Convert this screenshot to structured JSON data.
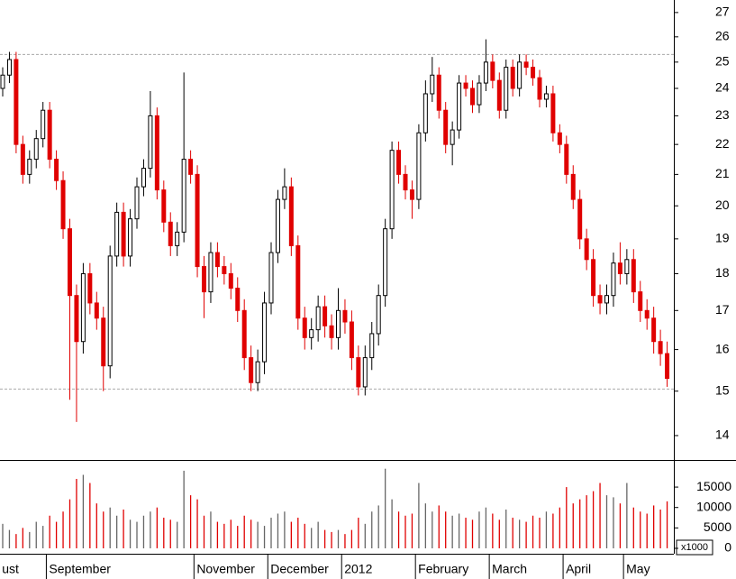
{
  "chart_data": {
    "type": "candlestick",
    "log_scale": true,
    "up_color": "#000000",
    "down_color": "#e00000",
    "ylim": [
      13.48,
      27.53
    ],
    "yticks": [
      14,
      15,
      16,
      17,
      18,
      19,
      20,
      21,
      22,
      23,
      24,
      25,
      26,
      27
    ],
    "reference_lines": [
      25.3,
      15.05
    ],
    "categories": [
      "ust",
      null,
      null,
      null,
      null,
      null,
      null,
      "September",
      null,
      null,
      null,
      null,
      null,
      null,
      null,
      null,
      null,
      null,
      null,
      null,
      null,
      null,
      null,
      null,
      null,
      null,
      null,
      null,
      null,
      "November",
      null,
      null,
      null,
      null,
      null,
      null,
      null,
      null,
      null,
      null,
      "December",
      null,
      null,
      null,
      null,
      null,
      null,
      null,
      null,
      null,
      null,
      "2012",
      null,
      null,
      null,
      null,
      null,
      null,
      null,
      null,
      null,
      null,
      "February",
      null,
      null,
      null,
      null,
      null,
      null,
      null,
      null,
      null,
      null,
      "March",
      null,
      null,
      null,
      null,
      null,
      null,
      null,
      null,
      null,
      null,
      "April",
      null,
      null,
      null,
      null,
      null,
      null,
      null,
      null,
      "May",
      null,
      null,
      null,
      null,
      null,
      null
    ],
    "open": [
      24.0,
      24.5,
      25.1,
      22.0,
      21.0,
      21.5,
      22.2,
      23.2,
      21.5,
      20.8,
      19.3,
      17.4,
      16.2,
      18.0,
      17.2,
      16.8,
      15.6,
      18.5,
      19.8,
      18.5,
      19.6,
      20.6,
      21.2,
      23.0,
      20.5,
      19.5,
      18.8,
      19.2,
      21.5,
      21.0,
      18.2,
      17.5,
      18.6,
      18.2,
      18.0,
      17.6,
      17.0,
      15.8,
      15.2,
      15.7,
      17.2,
      18.6,
      20.2,
      20.6,
      18.8,
      16.8,
      16.3,
      16.5,
      17.1,
      16.6,
      16.3,
      17.0,
      16.7,
      15.8,
      15.1,
      15.8,
      16.4,
      17.4,
      19.3,
      21.8,
      21.0,
      20.5,
      20.2,
      22.4,
      23.8,
      24.5,
      23.2,
      22.0,
      22.5,
      24.2,
      24.0,
      23.4,
      24.2,
      25.0,
      24.3,
      23.2,
      24.8,
      24.0,
      25.0,
      24.8,
      24.4,
      23.6,
      23.8,
      22.4,
      22.0,
      21.0,
      20.2,
      19.0,
      18.4,
      17.4,
      17.2,
      17.4,
      18.3,
      18.0,
      18.4,
      17.5,
      17.0,
      16.8,
      16.2,
      15.9
    ],
    "high": [
      24.8,
      25.4,
      25.4,
      22.3,
      21.8,
      22.5,
      23.5,
      23.5,
      21.8,
      21.1,
      19.6,
      17.7,
      18.3,
      18.3,
      17.5,
      17.1,
      18.8,
      20.1,
      20.1,
      19.9,
      20.9,
      21.5,
      23.9,
      23.3,
      20.8,
      19.8,
      19.5,
      24.6,
      21.8,
      21.3,
      18.5,
      18.9,
      18.9,
      18.5,
      18.3,
      17.9,
      17.3,
      16.1,
      16.0,
      17.5,
      18.9,
      20.5,
      21.2,
      20.9,
      19.1,
      17.1,
      16.8,
      17.4,
      17.4,
      16.9,
      17.6,
      17.3,
      17.0,
      16.1,
      16.1,
      16.7,
      17.7,
      19.6,
      22.1,
      22.1,
      21.3,
      20.8,
      22.7,
      24.3,
      25.2,
      24.8,
      23.5,
      22.8,
      24.5,
      24.5,
      24.3,
      24.5,
      25.9,
      25.3,
      24.6,
      25.1,
      25.1,
      25.3,
      25.3,
      25.1,
      24.7,
      24.1,
      24.1,
      22.7,
      22.3,
      21.3,
      20.5,
      19.3,
      18.7,
      17.7,
      17.7,
      18.6,
      18.9,
      18.7,
      18.7,
      17.8,
      17.3,
      17.1,
      16.5,
      16.2
    ],
    "low": [
      23.7,
      24.2,
      21.7,
      20.7,
      20.7,
      21.2,
      21.9,
      21.2,
      20.5,
      19.0,
      14.8,
      14.3,
      15.9,
      16.9,
      16.5,
      15.0,
      15.3,
      18.2,
      18.2,
      18.2,
      19.3,
      20.3,
      20.9,
      20.2,
      19.2,
      18.5,
      18.5,
      18.9,
      20.7,
      17.9,
      16.8,
      17.2,
      17.9,
      17.7,
      17.3,
      16.7,
      15.5,
      15.0,
      15.0,
      15.4,
      16.9,
      18.3,
      19.9,
      18.5,
      16.5,
      16.0,
      16.0,
      16.2,
      16.3,
      16.0,
      16.0,
      16.4,
      15.5,
      14.9,
      14.9,
      15.5,
      16.1,
      17.1,
      19.0,
      20.7,
      20.2,
      19.6,
      19.9,
      22.1,
      23.5,
      22.9,
      21.7,
      21.3,
      22.2,
      23.7,
      23.1,
      23.1,
      23.9,
      24.0,
      22.9,
      22.9,
      23.7,
      23.7,
      24.5,
      24.1,
      23.3,
      23.3,
      22.1,
      21.7,
      20.7,
      19.9,
      18.7,
      18.1,
      17.1,
      16.9,
      16.9,
      17.1,
      17.7,
      17.7,
      17.2,
      16.7,
      16.5,
      15.9,
      15.6,
      15.1
    ],
    "close": [
      24.5,
      25.1,
      22.0,
      21.0,
      21.5,
      22.2,
      23.2,
      21.5,
      20.8,
      19.3,
      17.4,
      16.2,
      18.0,
      17.2,
      16.8,
      15.6,
      18.5,
      19.8,
      18.5,
      19.6,
      20.6,
      21.2,
      23.0,
      20.5,
      19.5,
      18.8,
      19.2,
      21.5,
      21.0,
      18.2,
      17.5,
      18.6,
      18.2,
      18.0,
      17.6,
      17.0,
      15.8,
      15.2,
      15.7,
      17.2,
      18.6,
      20.2,
      20.6,
      18.8,
      16.8,
      16.3,
      16.5,
      17.1,
      16.6,
      16.3,
      17.0,
      16.7,
      15.8,
      15.1,
      15.8,
      16.4,
      17.4,
      19.3,
      21.8,
      21.0,
      20.5,
      20.2,
      22.4,
      23.8,
      24.5,
      23.2,
      22.0,
      22.5,
      24.2,
      24.0,
      23.4,
      24.2,
      25.0,
      24.3,
      23.2,
      24.8,
      24.0,
      25.0,
      24.8,
      24.4,
      23.6,
      23.8,
      22.4,
      22.0,
      21.0,
      20.2,
      19.0,
      18.4,
      17.4,
      17.2,
      17.4,
      18.3,
      18.0,
      18.4,
      17.5,
      17.0,
      16.8,
      16.2,
      15.9,
      15.3
    ],
    "volume": {
      "unit_label": "x1000",
      "ylim": [
        0,
        21200
      ],
      "yticks": [
        0,
        5000,
        10000,
        15000
      ],
      "values": [
        6000,
        4500,
        3500,
        5000,
        4000,
        6500,
        5500,
        8000,
        6500,
        9000,
        12000,
        17000,
        18000,
        16000,
        11000,
        9000,
        10000,
        8000,
        9500,
        7000,
        6500,
        8000,
        9000,
        10000,
        7500,
        7000,
        6500,
        19000,
        13000,
        12000,
        8000,
        9000,
        6500,
        6000,
        7000,
        5500,
        8000,
        7000,
        6500,
        5500,
        7500,
        8500,
        9000,
        6500,
        7500,
        6000,
        5000,
        6500,
        4500,
        4000,
        4500,
        3500,
        4500,
        7500,
        6000,
        9000,
        10500,
        19500,
        12000,
        9000,
        8000,
        8500,
        16000,
        11000,
        9000,
        10500,
        9000,
        8000,
        8500,
        7500,
        7000,
        9000,
        10000,
        8500,
        7000,
        9500,
        7500,
        7000,
        6500,
        8000,
        7500,
        9000,
        8500,
        10000,
        15000,
        11000,
        12000,
        13000,
        14000,
        16000,
        13000,
        12500,
        11000,
        16000,
        10000,
        9000,
        8500,
        10500,
        9500,
        11500
      ]
    }
  }
}
